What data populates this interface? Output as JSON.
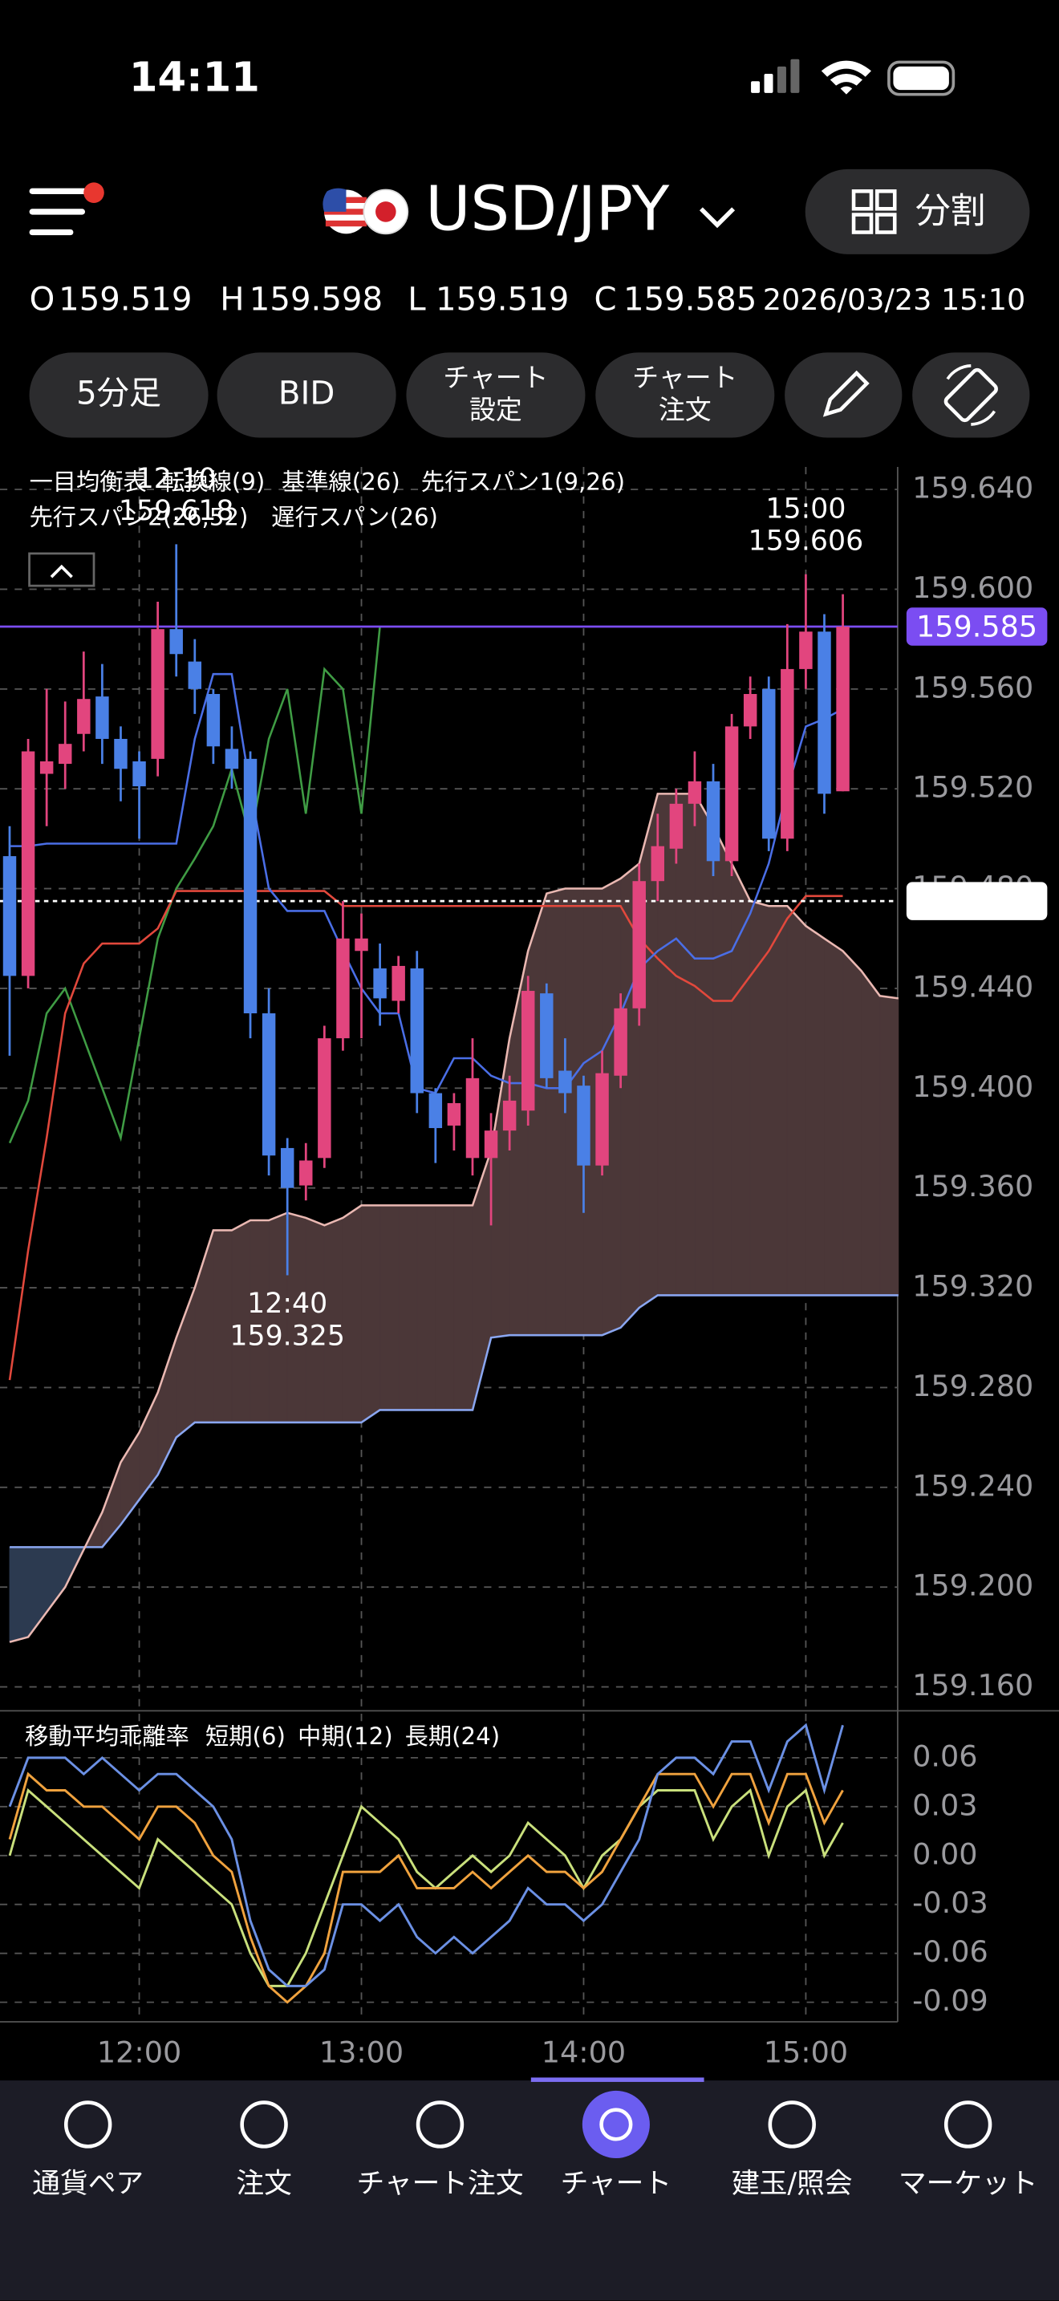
{
  "status": {
    "time": "14:11"
  },
  "header": {
    "pair": "USD/JPY",
    "split": "分割"
  },
  "quote": {
    "labels": [
      "O",
      "H",
      "L",
      "C"
    ],
    "values": [
      159.519,
      159.598,
      159.519,
      159.585
    ],
    "datetime": "2026/03/23 15:10"
  },
  "toolbar": [
    [
      "5分足"
    ],
    [
      "BID"
    ],
    [
      "チャート",
      "設定"
    ],
    [
      "チャート",
      "注文"
    ]
  ],
  "chart_data": [
    {
      "type": "candlestick",
      "indicator": "一目均衡表",
      "x": [
        685,
        690,
        695,
        700,
        705,
        710,
        715,
        720,
        725,
        730,
        735,
        740,
        745,
        750,
        755,
        760,
        765,
        770,
        775,
        780,
        785,
        790,
        795,
        800,
        805,
        810,
        815,
        820,
        825,
        830,
        835,
        840,
        845,
        850,
        855,
        860,
        865,
        870,
        875,
        880,
        885,
        890,
        895,
        900,
        905,
        910,
        915,
        920,
        925
      ],
      "xlim": [
        682.4,
        924.8
      ],
      "xticks": [
        {
          "value": 720,
          "label": "12:00"
        },
        {
          "value": 780,
          "label": "13:00"
        },
        {
          "value": 840,
          "label": "14:00"
        },
        {
          "value": 900,
          "label": "15:00"
        }
      ],
      "ylim": [
        159.151,
        159.649
      ],
      "yticks": [
        {
          "value": 159.64,
          "label": "159.640"
        },
        {
          "value": 159.6,
          "label": "159.600"
        },
        {
          "value": 159.56,
          "label": "159.560"
        },
        {
          "value": 159.52,
          "label": "159.520"
        },
        {
          "value": 159.48,
          "label": "159.480"
        },
        {
          "value": 159.44,
          "label": "159.440"
        },
        {
          "value": 159.4,
          "label": "159.400"
        },
        {
          "value": 159.36,
          "label": "159.360"
        },
        {
          "value": 159.32,
          "label": "159.320"
        },
        {
          "value": 159.28,
          "label": "159.280"
        },
        {
          "value": 159.24,
          "label": "159.240"
        },
        {
          "value": 159.2,
          "label": "159.200"
        },
        {
          "value": 159.16,
          "label": "159.160"
        }
      ],
      "grid": true,
      "up_color": "#e2457e",
      "down_color": "#4a80e6",
      "open": [
        159.493,
        159.445,
        159.526,
        159.53,
        159.542,
        159.557,
        159.54,
        159.531,
        159.532,
        159.584,
        159.571,
        159.558,
        159.536,
        159.532,
        159.43,
        159.376,
        159.361,
        159.372,
        159.42,
        159.455,
        159.448,
        159.435,
        159.448,
        159.398,
        159.385,
        159.372,
        159.372,
        159.383,
        159.391,
        159.438,
        159.407,
        159.401,
        159.369,
        159.405,
        159.432,
        159.483,
        159.496,
        159.514,
        159.523,
        159.491,
        159.545,
        159.56,
        159.5,
        159.568,
        159.583,
        159.519,
        null,
        null,
        null
      ],
      "high": [
        159.505,
        159.54,
        159.56,
        159.555,
        159.575,
        159.57,
        159.545,
        159.535,
        159.595,
        159.618,
        159.58,
        159.56,
        159.545,
        159.535,
        159.44,
        159.38,
        159.378,
        159.425,
        159.475,
        159.47,
        159.458,
        159.453,
        159.455,
        159.4,
        159.398,
        159.42,
        159.39,
        159.405,
        159.445,
        159.442,
        159.42,
        159.405,
        159.415,
        159.438,
        159.49,
        159.51,
        159.52,
        159.535,
        159.53,
        159.55,
        159.565,
        159.565,
        159.586,
        159.606,
        159.59,
        159.598,
        null,
        null,
        null
      ],
      "low": [
        159.413,
        159.44,
        159.505,
        159.52,
        159.535,
        159.53,
        159.515,
        159.5,
        159.525,
        159.565,
        159.55,
        159.53,
        159.52,
        159.42,
        159.365,
        159.325,
        159.355,
        159.368,
        159.415,
        159.42,
        159.425,
        159.43,
        159.39,
        159.37,
        159.375,
        159.365,
        159.345,
        159.375,
        159.385,
        159.4,
        159.39,
        159.35,
        159.365,
        159.4,
        159.425,
        159.475,
        159.49,
        159.505,
        159.485,
        159.485,
        159.54,
        159.495,
        159.495,
        159.56,
        159.51,
        159.519,
        null,
        null,
        null
      ],
      "close": [
        159.445,
        159.535,
        159.531,
        159.538,
        159.556,
        159.54,
        159.528,
        159.521,
        159.584,
        159.574,
        159.56,
        159.537,
        159.528,
        159.43,
        159.373,
        159.36,
        159.371,
        159.42,
        159.46,
        159.46,
        159.436,
        159.449,
        159.398,
        159.384,
        159.394,
        159.404,
        159.383,
        159.395,
        159.439,
        159.404,
        159.398,
        159.369,
        159.406,
        159.432,
        159.483,
        159.497,
        159.514,
        159.523,
        159.491,
        159.545,
        159.558,
        159.5,
        159.568,
        159.583,
        159.518,
        159.585,
        null,
        null,
        null
      ],
      "series": [
        {
          "name": "転換線(9)",
          "color": "#4a6ee6",
          "values": [
            159.497,
            159.497,
            159.498,
            159.498,
            159.498,
            159.498,
            159.498,
            159.498,
            159.498,
            159.498,
            159.54,
            159.566,
            159.566,
            159.52,
            159.48,
            159.471,
            159.471,
            159.471,
            159.455,
            159.44,
            159.43,
            159.43,
            159.4,
            159.398,
            159.412,
            159.412,
            159.405,
            159.402,
            159.402,
            159.4,
            159.4,
            159.41,
            159.415,
            159.43,
            159.448,
            159.455,
            159.46,
            159.452,
            159.452,
            159.455,
            159.47,
            159.49,
            159.52,
            159.545,
            159.548,
            159.552,
            null,
            null,
            null
          ]
        },
        {
          "name": "基準線(26)",
          "color": "#e2483c",
          "values": [
            159.283,
            159.335,
            159.38,
            159.43,
            159.45,
            159.458,
            159.458,
            159.458,
            159.464,
            159.479,
            159.479,
            159.479,
            159.479,
            159.479,
            159.479,
            159.479,
            159.479,
            159.479,
            159.473,
            159.473,
            159.473,
            159.473,
            159.473,
            159.473,
            159.473,
            159.473,
            159.473,
            159.473,
            159.473,
            159.473,
            159.473,
            159.473,
            159.473,
            159.473,
            159.46,
            159.452,
            159.445,
            159.441,
            159.435,
            159.435,
            159.445,
            159.455,
            159.468,
            159.477,
            159.477,
            159.477,
            null,
            null,
            null
          ]
        },
        {
          "name": "先行スパン1(9,26)",
          "color": "#eab8b2",
          "values": [
            159.178,
            159.18,
            159.19,
            159.2,
            159.215,
            159.23,
            159.25,
            159.262,
            159.278,
            159.3,
            159.32,
            159.343,
            159.343,
            159.347,
            159.347,
            159.35,
            159.348,
            159.345,
            159.348,
            159.353,
            159.353,
            159.353,
            159.353,
            159.353,
            159.353,
            159.353,
            159.375,
            159.42,
            159.455,
            159.478,
            159.48,
            159.48,
            159.48,
            159.484,
            159.49,
            159.518,
            159.518,
            159.518,
            159.505,
            159.49,
            159.475,
            159.473,
            159.473,
            159.465,
            159.46,
            159.455,
            159.447,
            159.437,
            159.436
          ]
        },
        {
          "name": "先行スパン2(26,52)",
          "color": "#8aa6f0",
          "values": [
            159.216,
            159.216,
            159.216,
            159.216,
            159.216,
            159.216,
            159.225,
            159.235,
            159.245,
            159.26,
            159.266,
            159.266,
            159.266,
            159.266,
            159.266,
            159.266,
            159.266,
            159.266,
            159.266,
            159.266,
            159.271,
            159.271,
            159.271,
            159.271,
            159.271,
            159.271,
            159.3,
            159.301,
            159.301,
            159.301,
            159.301,
            159.301,
            159.301,
            159.304,
            159.312,
            159.317,
            159.317,
            159.317,
            159.317,
            159.317,
            159.317,
            159.317,
            159.317,
            159.317,
            159.317,
            159.317,
            159.317,
            159.317,
            159.317
          ]
        },
        {
          "name": "遅行スパン(26)",
          "color": "#3f9c44",
          "values": [
            159.378,
            159.395,
            159.43,
            159.44,
            159.42,
            159.4,
            159.38,
            159.42,
            159.46,
            159.48,
            159.492,
            159.505,
            159.528,
            159.5,
            159.54,
            159.56,
            159.51,
            159.568,
            159.56,
            159.51,
            159.585,
            null,
            null,
            null,
            null,
            null,
            null,
            null,
            null,
            null,
            null,
            null,
            null,
            null,
            null,
            null,
            null,
            null,
            null,
            null,
            null,
            null,
            null,
            null,
            null,
            null,
            null,
            null,
            null
          ]
        }
      ],
      "cloud_colors": [
        "#4b3738",
        "#2c3a50"
      ],
      "annotations": [
        {
          "time": "12:10",
          "value": 159.618
        },
        {
          "time": "12:40",
          "value": 159.325
        },
        {
          "time": "15:00",
          "value": 159.606
        }
      ],
      "price_lines": [
        {
          "value": 159.585,
          "color": "#7b4df2",
          "style": "solid"
        },
        {
          "value": 159.475,
          "color": "#ffffff",
          "style": "dashed"
        }
      ]
    },
    {
      "type": "line",
      "title": "移動平均乖離率",
      "x": [
        685,
        690,
        695,
        700,
        705,
        710,
        715,
        720,
        725,
        730,
        735,
        740,
        745,
        750,
        755,
        760,
        765,
        770,
        775,
        780,
        785,
        790,
        795,
        800,
        805,
        810,
        815,
        820,
        825,
        830,
        835,
        840,
        845,
        850,
        855,
        860,
        865,
        870,
        875,
        880,
        885,
        890,
        895,
        900,
        905,
        910
      ],
      "xlim": [
        682.4,
        924.8
      ],
      "ylim": [
        -0.102,
        0.087
      ],
      "yticks": [
        0.06,
        0.03,
        {
          "value": 0,
          "label": "0.00"
        },
        -0.03,
        -0.06,
        -0.09
      ],
      "grid": true,
      "series": [
        {
          "name": "短期(6)",
          "color": "#c9e07c",
          "values": [
            0.0,
            0.04,
            0.03,
            0.02,
            0.01,
            0.0,
            -0.01,
            -0.02,
            0.01,
            0.0,
            -0.01,
            -0.02,
            -0.03,
            -0.06,
            -0.08,
            -0.08,
            -0.06,
            -0.03,
            0.0,
            0.03,
            0.02,
            0.01,
            -0.01,
            -0.02,
            -0.01,
            0.0,
            -0.01,
            0.0,
            0.02,
            0.01,
            0.0,
            -0.02,
            0.0,
            0.01,
            0.03,
            0.04,
            0.04,
            0.04,
            0.01,
            0.03,
            0.04,
            0.0,
            0.03,
            0.04,
            0.0,
            0.02
          ]
        },
        {
          "name": "中期(12)",
          "color": "#f0a23e",
          "values": [
            0.01,
            0.05,
            0.04,
            0.04,
            0.03,
            0.03,
            0.02,
            0.01,
            0.03,
            0.03,
            0.02,
            0.0,
            -0.01,
            -0.05,
            -0.08,
            -0.09,
            -0.08,
            -0.06,
            -0.01,
            -0.01,
            -0.01,
            0.0,
            -0.02,
            -0.02,
            -0.02,
            -0.01,
            -0.02,
            -0.01,
            0.0,
            -0.01,
            -0.01,
            -0.02,
            -0.01,
            0.01,
            0.03,
            0.05,
            0.05,
            0.05,
            0.03,
            0.05,
            0.05,
            0.02,
            0.05,
            0.05,
            0.02,
            0.04
          ]
        },
        {
          "name": "長期(24)",
          "color": "#6b90e4",
          "values": [
            0.03,
            0.06,
            0.06,
            0.06,
            0.05,
            0.06,
            0.05,
            0.04,
            0.05,
            0.05,
            0.04,
            0.03,
            0.01,
            -0.04,
            -0.07,
            -0.08,
            -0.08,
            -0.07,
            -0.03,
            -0.03,
            -0.04,
            -0.03,
            -0.05,
            -0.06,
            -0.05,
            -0.06,
            -0.05,
            -0.04,
            -0.02,
            -0.03,
            -0.03,
            -0.04,
            -0.03,
            -0.01,
            0.01,
            0.05,
            0.06,
            0.06,
            0.05,
            0.07,
            0.07,
            0.04,
            0.07,
            0.08,
            0.04,
            0.08
          ]
        }
      ]
    }
  ],
  "nav": [
    "通貨ペア",
    "注文",
    "チャート注文",
    "チャート",
    "建玉/照会",
    "マーケット"
  ]
}
